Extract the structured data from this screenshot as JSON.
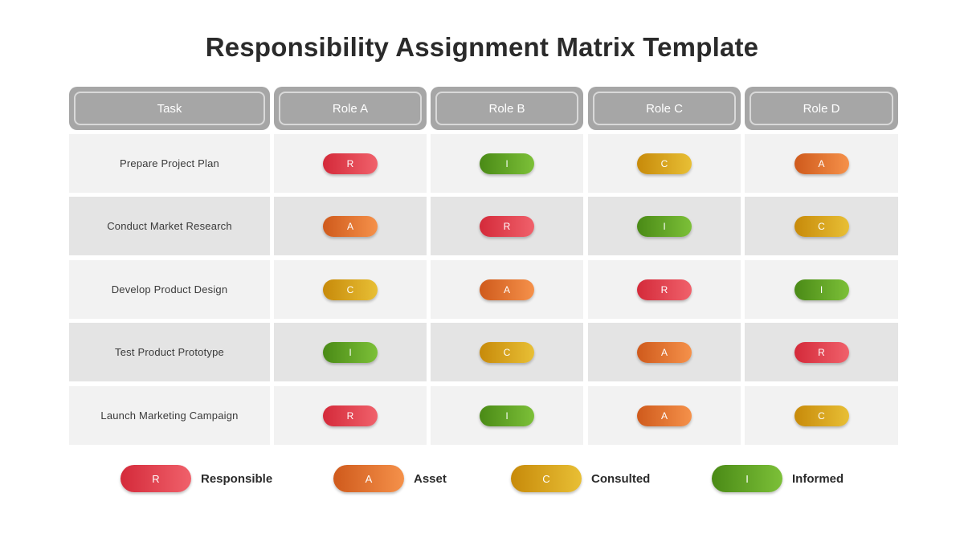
{
  "title": "Responsibility Assignment Matrix Template",
  "headers": [
    "Task",
    "Role A",
    "Role B",
    "Role C",
    "Role D"
  ],
  "rows": [
    {
      "task": "Prepare Project Plan",
      "roles": [
        "R",
        "I",
        "C",
        "A"
      ]
    },
    {
      "task": "Conduct Market Research",
      "roles": [
        "A",
        "R",
        "I",
        "C"
      ]
    },
    {
      "task": "Develop Product Design",
      "roles": [
        "C",
        "A",
        "R",
        "I"
      ]
    },
    {
      "task": "Test Product Prototype",
      "roles": [
        "I",
        "C",
        "A",
        "R"
      ]
    },
    {
      "task": "Launch Marketing Campaign",
      "roles": [
        "R",
        "I",
        "A",
        "C"
      ]
    }
  ],
  "legend": [
    {
      "code": "R",
      "label": "Responsible",
      "color": "#e2404d"
    },
    {
      "code": "A",
      "label": "Asset",
      "color": "#e8762f"
    },
    {
      "code": "C",
      "label": "Consulted",
      "color": "#d9a51e"
    },
    {
      "code": "I",
      "label": "Informed",
      "color": "#5fa524"
    }
  ]
}
